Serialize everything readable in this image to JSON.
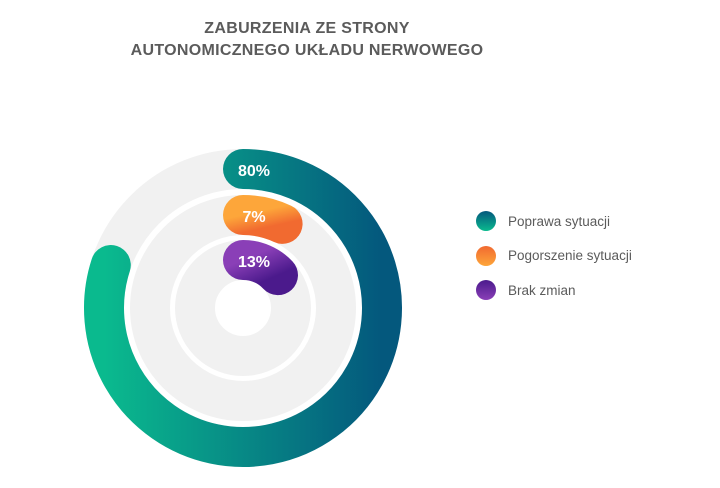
{
  "title": {
    "line1": "ZABURZENIA ZE STRONY",
    "line2": "AUTONOMICZNEGO UKŁADU NERWOWEGO"
  },
  "chart_data": {
    "type": "radial-bar",
    "title": "ZABURZENIA ZE STRONY AUTONOMICZNEGO UKŁADU NERWOWEGO",
    "categories": [
      "Poprawa sytuacji",
      "Pogorszenie sytuacji",
      "Brak zmian"
    ],
    "values": [
      80,
      7,
      13
    ],
    "labels": [
      "80%",
      "7%",
      "13%"
    ],
    "unit": "%",
    "track_color": "#f1f1f1",
    "series": [
      {
        "name": "Poprawa sytuacji",
        "value": 80,
        "label": "80%",
        "gradient": [
          "#0aba8e",
          "#04587d"
        ]
      },
      {
        "name": "Pogorszenie sytuacji",
        "value": 7,
        "label": "7%",
        "gradient": [
          "#fda63a",
          "#f16a30"
        ]
      },
      {
        "name": "Brak zmian",
        "value": 13,
        "label": "13%",
        "gradient": [
          "#8a3fb7",
          "#4b1a8c"
        ]
      }
    ],
    "legend_position": "right"
  }
}
